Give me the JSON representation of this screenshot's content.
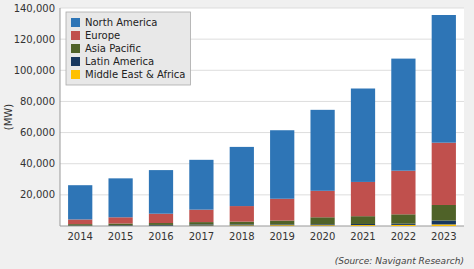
{
  "chart_data": {
    "type": "bar",
    "stacked": true,
    "ylabel": "(MW)",
    "annotations": [
      "(Source: Navigant Research)"
    ],
    "categories": [
      "2014",
      "2015",
      "2016",
      "2017",
      "2018",
      "2019",
      "2020",
      "2021",
      "2022",
      "2023"
    ],
    "series": [
      {
        "name": "Middle East & Africa",
        "color": "#FFC000",
        "values": [
          100,
          200,
          200,
          300,
          400,
          500,
          500,
          600,
          700,
          1000
        ]
      },
      {
        "name": "Latin America",
        "color": "#17375E",
        "values": [
          300,
          400,
          500,
          700,
          600,
          500,
          600,
          700,
          800,
          2500
        ]
      },
      {
        "name": "Asia Pacific",
        "color": "#4F6228",
        "values": [
          800,
          1000,
          1200,
          1500,
          1800,
          2500,
          4500,
          5000,
          6000,
          10000
        ]
      },
      {
        "name": "Europe",
        "color": "#C0504D",
        "values": [
          3000,
          4000,
          6000,
          8000,
          10000,
          14000,
          17000,
          22000,
          28000,
          40000
        ]
      },
      {
        "name": "North America",
        "color": "#2E75B6",
        "values": [
          22000,
          25000,
          28000,
          32000,
          38000,
          44000,
          52000,
          60000,
          72000,
          82000
        ]
      }
    ],
    "ylim": [
      0,
      140000
    ],
    "yticks": [
      {
        "value": 20000,
        "label": "20,000"
      },
      {
        "value": 40000,
        "label": "40,000"
      },
      {
        "value": 60000,
        "label": "60,000"
      },
      {
        "value": 80000,
        "label": "80,000"
      },
      {
        "value": 100000,
        "label": "100,000"
      },
      {
        "value": 120000,
        "label": "120,000"
      },
      {
        "value": 140000,
        "label": "140,000"
      }
    ],
    "grid": true,
    "legend": "upper left"
  }
}
